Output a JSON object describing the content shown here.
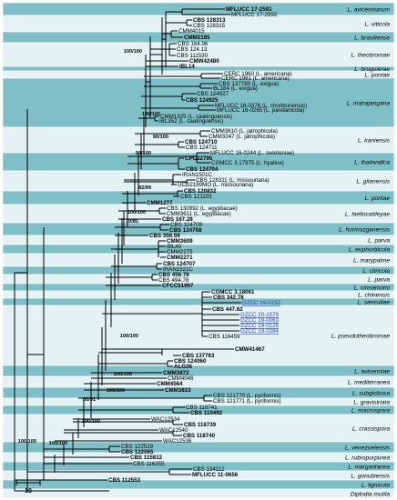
{
  "figure": {
    "colors": {
      "band_dark": "#7fbfc7",
      "band_light": "#e4f2f4",
      "highlight_taxa": "#2a46c8"
    },
    "scale_bar": "10"
  },
  "clades": [
    {
      "name": "L. avicenniarum",
      "shade": "dark"
    },
    {
      "name": "L. viticola",
      "shade": "light"
    },
    {
      "name": "L. brasiliense",
      "shade": "dark"
    },
    {
      "name": "L. theobromae",
      "shade": "light"
    },
    {
      "name": "L. bruguierae",
      "shade": "dark"
    },
    {
      "name": "L. pontae",
      "shade": "light"
    },
    {
      "name": "L. mahajangana",
      "shade": "dark"
    },
    {
      "name": "L. iraniensis",
      "shade": "light"
    },
    {
      "name": "L. thailandica",
      "shade": "dark"
    },
    {
      "name": "L. gilanensis",
      "shade": "light"
    },
    {
      "name": "L. pontae",
      "shade": "dark"
    },
    {
      "name": "L. laeliocattleyae",
      "shade": "light"
    },
    {
      "name": "L. hormozganensis",
      "shade": "dark"
    },
    {
      "name": "L. parva",
      "shade": "light"
    },
    {
      "name": "L. euphorbicola",
      "shade": "dark"
    },
    {
      "name": "L. marypalme",
      "shade": "light"
    },
    {
      "name": "L. citricola",
      "shade": "dark"
    },
    {
      "name": "L. parva",
      "shade": "light"
    },
    {
      "name": "L. cinnamomi",
      "shade": "dark"
    },
    {
      "name": "L. chinensis",
      "shade": "light"
    },
    {
      "name": "L. sterculiae",
      "shade": "dark"
    },
    {
      "name": "L. pseudotheobromae",
      "shade": "light"
    },
    {
      "name": "L. avicenniae",
      "shade": "dark"
    },
    {
      "name": "L. mediterranea",
      "shade": "light"
    },
    {
      "name": "L. subglobosa",
      "shade": "dark"
    },
    {
      "name": "L. gravistriata",
      "shade": "light"
    },
    {
      "name": "L. macrospora",
      "shade": "dark"
    },
    {
      "name": "L. crassispora",
      "shade": "light"
    },
    {
      "name": "L. venezuelensis",
      "shade": "dark"
    },
    {
      "name": "L. rubropurpurea",
      "shade": "light"
    },
    {
      "name": "L. margaritacea",
      "shade": "dark"
    },
    {
      "name": "L. gonubiensis",
      "shade": "light"
    },
    {
      "name": "L. lignicola",
      "shade": "dark"
    },
    {
      "name": "Diplodia mutila",
      "shade": "light"
    }
  ],
  "taxa": [
    {
      "label": "MFLUCC 17-2591",
      "style": "bold"
    },
    {
      "label": "MFLUCC 17-2592",
      "style": ""
    },
    {
      "label": "CBS 128313",
      "style": "bold"
    },
    {
      "label": "CBS 128315",
      "style": ""
    },
    {
      "label": "CMM4015",
      "style": ""
    },
    {
      "label": "CMM2185",
      "style": "bold"
    },
    {
      "label": "CBS 164.96",
      "style": ""
    },
    {
      "label": "CBS 124.13",
      "style": ""
    },
    {
      "label": "CBS 111530",
      "style": ""
    },
    {
      "label": "CMW42480",
      "style": "bold"
    },
    {
      "label": "IBL14",
      "style": "bold"
    },
    {
      "label": "CERC 1960 (L. americana)",
      "style": ""
    },
    {
      "label": "CERC 1961 (L. americana)",
      "style": ""
    },
    {
      "label": "CBS 137785 (L. exigua)",
      "style": ""
    },
    {
      "label": "BL184 (L. exigua)",
      "style": ""
    },
    {
      "label": "CBS 124927",
      "style": ""
    },
    {
      "label": "CBS 124925",
      "style": "bold"
    },
    {
      "label": "MFLUCC 16-0376 (L. chonburiensis)",
      "style": ""
    },
    {
      "label": "MFLUCC 16-0265 (L. pandanicola)",
      "style": ""
    },
    {
      "label": "CMM1325 (L. caatinguensis)",
      "style": ""
    },
    {
      "label": "IBL352 (L. caatinguensis)",
      "style": ""
    },
    {
      "label": "CMM3610 (L. jatrophicola)",
      "style": ""
    },
    {
      "label": "CMM3247 (L. jatrophicola)",
      "style": ""
    },
    {
      "label": "CBS 124710",
      "style": "bold"
    },
    {
      "label": "CBS 124711",
      "style": ""
    },
    {
      "label": "MFLUCC 16-0244 (L. swieteniae)",
      "style": ""
    },
    {
      "label": "CPC22795",
      "style": "bold"
    },
    {
      "label": "CGMCC 3.17975 (L. hyalina)",
      "style": ""
    },
    {
      "label": "CBS 124704",
      "style": "bold"
    },
    {
      "label": "IRAN1501C",
      "style": ""
    },
    {
      "label": "CBS 128311 (L. missouriana)",
      "style": ""
    },
    {
      "label": "UCD2199MO (L. missouriana)",
      "style": ""
    },
    {
      "label": "CBS 120832",
      "style": "bold"
    },
    {
      "label": "CBS 121103",
      "style": ""
    },
    {
      "label": "CMM1277",
      "style": "bold"
    },
    {
      "label": "CBS 130992 (L. egyptiacae)",
      "style": ""
    },
    {
      "label": "CMM3611 (L. egyptiacae)",
      "style": ""
    },
    {
      "label": "CBS 167.28",
      "style": "bold"
    },
    {
      "label": "CBS 124709",
      "style": ""
    },
    {
      "label": "CBS 124708",
      "style": "bold"
    },
    {
      "label": "CBS 356.59",
      "style": "bold"
    },
    {
      "label": "CMM3609",
      "style": "bold"
    },
    {
      "label": "IBL40",
      "style": ""
    },
    {
      "label": "CMM2275",
      "style": ""
    },
    {
      "label": "CMM2271",
      "style": "bold"
    },
    {
      "label": "CBS 124707",
      "style": "bold"
    },
    {
      "label": "IRAN1521C",
      "style": ""
    },
    {
      "label": "CBS 456.78",
      "style": "bold"
    },
    {
      "label": "CBS 494.78",
      "style": ""
    },
    {
      "label": "CFCC51997",
      "style": "bold"
    },
    {
      "label": "CGMCC 3.18061",
      "style": "bold"
    },
    {
      "label": "CBS 342.78",
      "style": "bold"
    },
    {
      "label": "GZCC 19-0152",
      "style": "blue"
    },
    {
      "label": "CBS 447.62",
      "style": "bold"
    },
    {
      "label": "GZCC 20-1579",
      "style": "blue"
    },
    {
      "label": "GZCC 19-0063",
      "style": "blue"
    },
    {
      "label": "GZCC 19-0125",
      "style": "blue"
    },
    {
      "label": "GZCC 19-0184",
      "style": "blue"
    },
    {
      "label": "CBS 116459",
      "style": ""
    },
    {
      "label": "CMW41467",
      "style": "bold"
    },
    {
      "label": "CBS 137783",
      "style": "bold"
    },
    {
      "label": "CBS 124060",
      "style": "bold"
    },
    {
      "label": "ALG36",
      "style": "bold"
    },
    {
      "label": "CMM3872",
      "style": "bold"
    },
    {
      "label": "CMM4046",
      "style": ""
    },
    {
      "label": "CMM4564",
      "style": "bold"
    },
    {
      "label": "CMM3833",
      "style": "bold"
    },
    {
      "label": "CBS 121770 (L. pyriformis)",
      "style": ""
    },
    {
      "label": "CBS 121771 (L. pyriformis)",
      "style": ""
    },
    {
      "label": "CBS 118741",
      "style": ""
    },
    {
      "label": "CBS 110492",
      "style": "bold"
    },
    {
      "label": "WAC12534",
      "style": ""
    },
    {
      "label": "CBS 118739",
      "style": "bold"
    },
    {
      "label": "WAC12540",
      "style": ""
    },
    {
      "label": "CBS 118740",
      "style": "bold"
    },
    {
      "label": "WAC12536",
      "style": ""
    },
    {
      "label": "CBS 122519",
      "style": ""
    },
    {
      "label": "CBS 122065",
      "style": "bold"
    },
    {
      "label": "CBS 115812",
      "style": "bold"
    },
    {
      "label": "CBS 116355",
      "style": ""
    },
    {
      "label": "CBS 134112",
      "style": ""
    },
    {
      "label": "MFLUCC 11-0656",
      "style": "bold"
    },
    {
      "label": "CBS 112553",
      "style": "bold"
    }
  ],
  "supports": [
    "100/100",
    "100/100",
    "100/100",
    "90/100",
    "99/100",
    "92/99",
    "70/85",
    "100/100",
    "100/100",
    "100/100",
    "80/91",
    "100/100",
    "100/100",
    "100/100"
  ]
}
